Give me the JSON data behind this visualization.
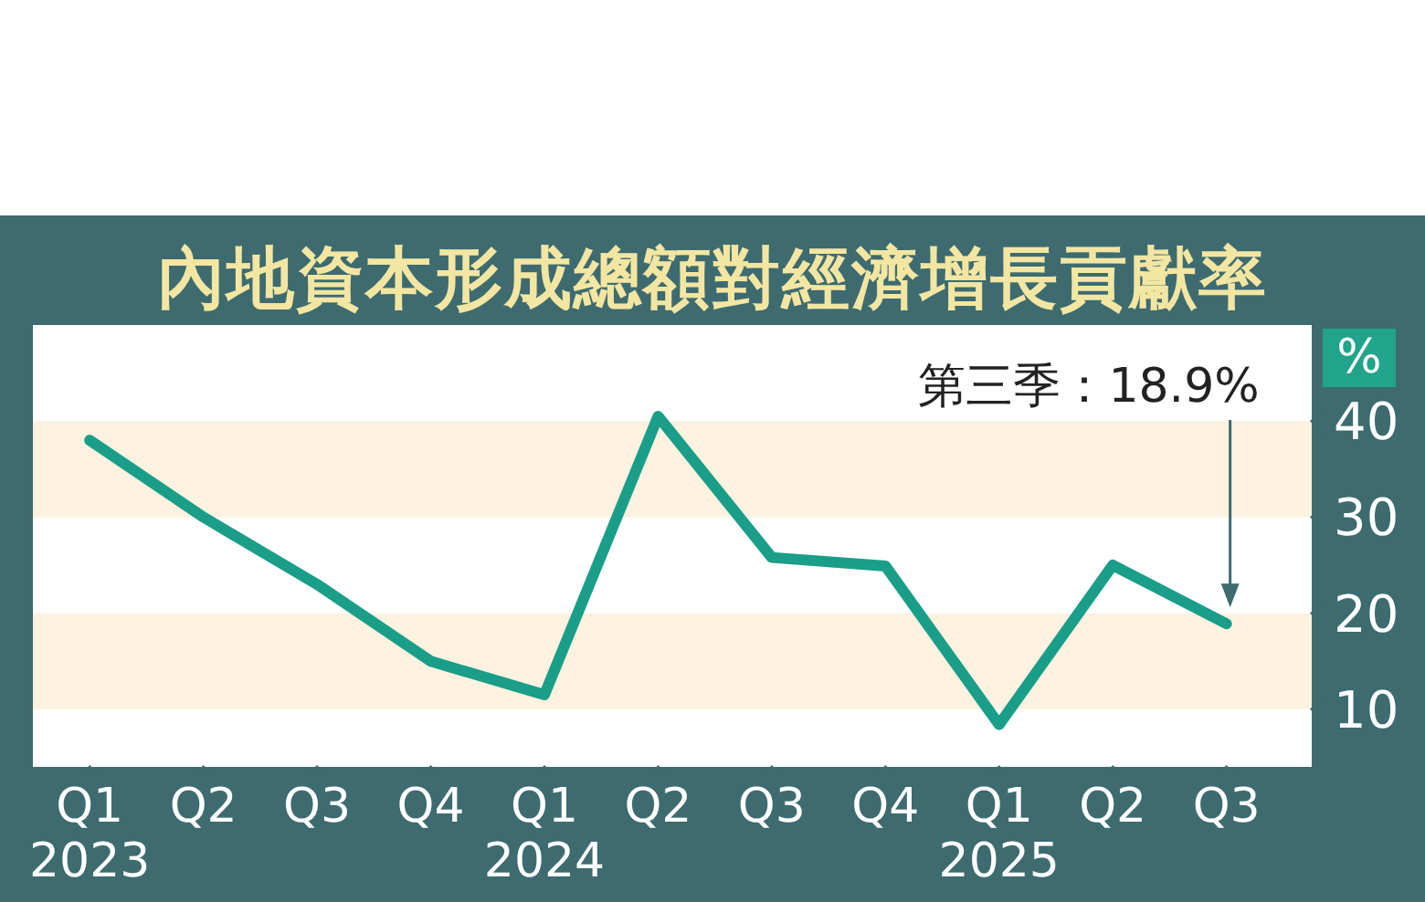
{
  "chart_data": {
    "type": "line",
    "title": "內地資本形成總額對經濟增長貢獻率",
    "ylabel": "%",
    "categories": [
      "Q1\n2023",
      "Q2",
      "Q3",
      "Q4",
      "Q1\n2024",
      "Q2",
      "Q3",
      "Q4",
      "Q1\n2025",
      "Q2",
      "Q3"
    ],
    "series": [
      {
        "color": "#1a9e8a",
        "values": [
          38,
          30,
          23,
          15,
          11.5,
          40.5,
          25.8,
          24.9,
          8.4,
          25,
          18.9
        ]
      }
    ],
    "ylim": [
      4,
      50
    ],
    "yticks": [
      10,
      20,
      30,
      40
    ],
    "bands": [
      {
        "axis": "y",
        "from": 10,
        "to": 20,
        "color": "#fdf2df"
      },
      {
        "axis": "y",
        "from": 30,
        "to": 40,
        "color": "#fdf2df"
      }
    ],
    "annotations": [
      "第三季：18.9%"
    ],
    "grid": false,
    "marker": "none",
    "line_style": "solid"
  }
}
